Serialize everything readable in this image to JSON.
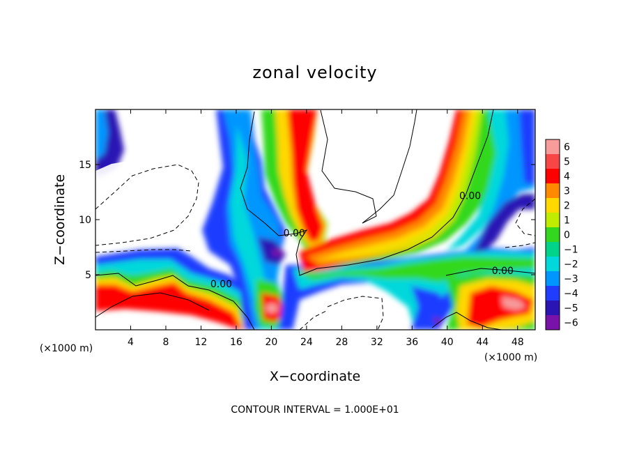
{
  "chart_data": {
    "type": "heatmap",
    "title": "zonal velocity",
    "xlabel": "X−coordinate",
    "ylabel": "Z−coordinate",
    "x_unit": "(×1000 m)",
    "footer": "CONTOUR INTERVAL = 1.000E+01",
    "xlim": [
      0,
      50
    ],
    "ylim": [
      0,
      20
    ],
    "x_ticks": [
      4,
      8,
      12,
      16,
      20,
      24,
      28,
      32,
      36,
      40,
      44,
      48
    ],
    "y_ticks": [
      5,
      10,
      15
    ],
    "colorbar": {
      "levels": [
        "6",
        "5",
        "4",
        "3",
        "2",
        "1",
        "0",
        "−1",
        "−2",
        "−3",
        "−4",
        "−5",
        "−6"
      ],
      "colors": [
        "#f79b9b",
        "#f84545",
        "#ff0000",
        "#ff8a00",
        "#ffd800",
        "#c0ec00",
        "#33d81e",
        "#00d48a",
        "#00d8dc",
        "#0096ff",
        "#1f3cff",
        "#2a15b4",
        "#7812a8"
      ]
    },
    "contour_labels": [
      {
        "text": "0.00",
        "x": 22.6,
        "z": 8.6
      },
      {
        "text": "0.00",
        "x": 14.3,
        "z": 4.0
      },
      {
        "text": "0.00",
        "x": 42.6,
        "z": 12.0
      },
      {
        "text": "0.00",
        "x": 46.3,
        "z": 5.2
      }
    ]
  }
}
